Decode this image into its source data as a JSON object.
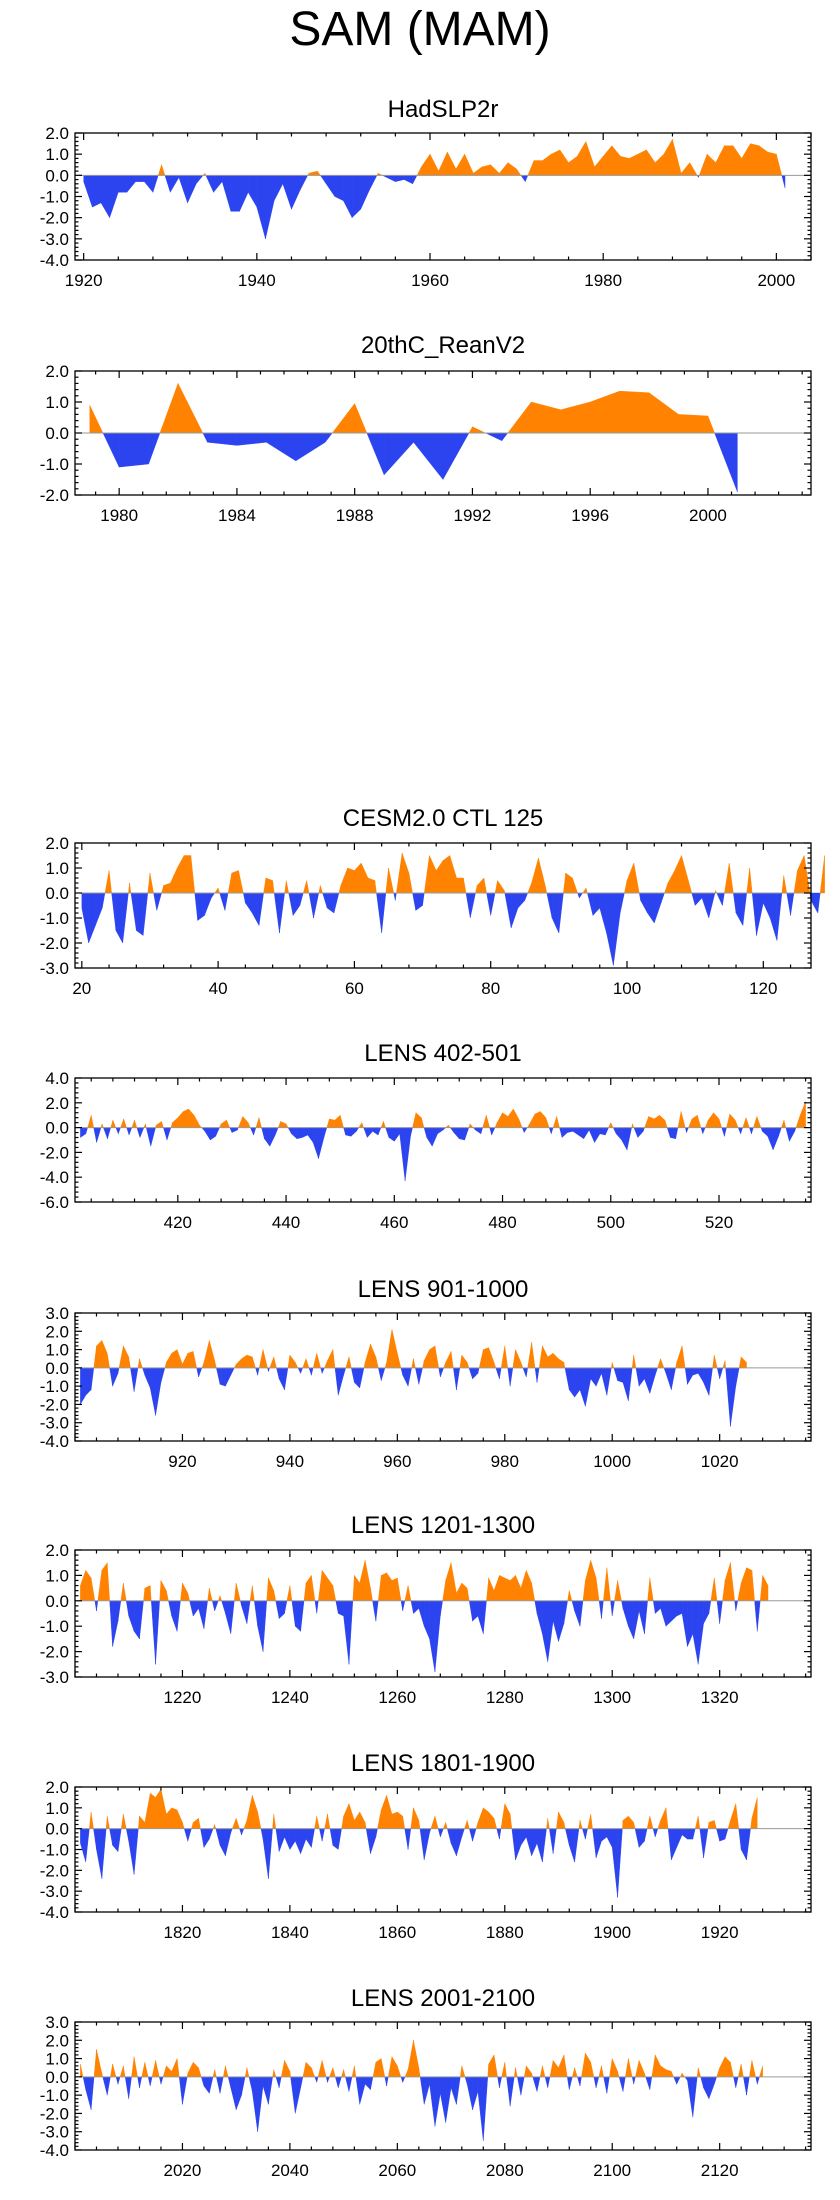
{
  "title": "SAM (MAM)",
  "colors": {
    "positive": "#ff8200",
    "negative": "#2b44f0",
    "frame": "#000000",
    "zero_line": "#9a9a9a"
  },
  "chart_data": [
    {
      "type": "area",
      "title": "HadSLP2r",
      "x_range": [
        1919,
        2004
      ],
      "ylim": [
        -4.0,
        2.0
      ],
      "yticks": [
        -4.0,
        -3.0,
        -2.0,
        -1.0,
        0.0,
        1.0,
        2.0
      ],
      "ytick_labels": [
        "-4.0",
        "-3.0",
        "-2.0",
        "-1.0",
        "0.0",
        "1.0",
        "2.0"
      ],
      "xticks": [
        1920,
        1940,
        1960,
        1980,
        2000
      ],
      "xtick_labels": [
        "1920",
        "1940",
        "1960",
        "1980",
        "2000"
      ],
      "x_start": 1920,
      "values": [
        -0.3,
        -1.5,
        -1.3,
        -2.0,
        -0.8,
        -0.8,
        -0.3,
        -0.3,
        -0.8,
        0.5,
        -0.8,
        -0.1,
        -1.3,
        -0.4,
        0.1,
        -0.8,
        -0.3,
        -1.7,
        -1.7,
        -0.8,
        -1.5,
        -3.0,
        -1.2,
        -0.4,
        -1.6,
        -0.7,
        0.1,
        0.2,
        -0.4,
        -1.0,
        -1.2,
        -2.0,
        -1.6,
        -0.7,
        0.1,
        -0.1,
        -0.3,
        -0.2,
        -0.4,
        0.4,
        1.0,
        0.2,
        1.1,
        0.3,
        1.0,
        0.1,
        0.4,
        0.5,
        0.1,
        0.6,
        0.3,
        -0.3,
        0.7,
        0.7,
        1.0,
        1.2,
        0.6,
        0.9,
        1.6,
        0.4,
        0.9,
        1.4,
        0.9,
        0.8,
        1.0,
        1.2,
        0.6,
        1.0,
        1.7,
        0.1,
        0.6,
        -0.1,
        1.0,
        0.6,
        1.4,
        1.4,
        0.8,
        1.5,
        1.4,
        1.1,
        1.0,
        -0.6
      ]
    },
    {
      "type": "area",
      "title": "20thC_ReanV2",
      "x_range": [
        1978.5,
        2003.5
      ],
      "ylim": [
        -2.0,
        2.0
      ],
      "yticks": [
        -2.0,
        -1.0,
        0.0,
        1.0,
        2.0
      ],
      "ytick_labels": [
        "-2.0",
        "-1.0",
        "0.0",
        "1.0",
        "2.0"
      ],
      "xticks": [
        1980,
        1984,
        1988,
        1992,
        1996,
        2000
      ],
      "xtick_labels": [
        "1980",
        "1984",
        "1988",
        "1992",
        "1996",
        "2000"
      ],
      "x_start": 1979,
      "values": [
        0.9,
        -1.1,
        -1.0,
        1.6,
        -0.3,
        -0.4,
        -0.3,
        -0.9,
        -0.3,
        0.95,
        -1.35,
        -0.3,
        -1.5,
        0.2,
        -0.25,
        1.0,
        0.75,
        1.0,
        1.35,
        1.3,
        0.6,
        0.55,
        -1.9
      ]
    },
    {
      "type": "area",
      "title": "CESM2.0 CTL 125",
      "x_range": [
        19,
        127
      ],
      "ylim": [
        -3.0,
        2.0
      ],
      "yticks": [
        -3.0,
        -2.0,
        -1.0,
        0.0,
        1.0,
        2.0
      ],
      "ytick_labels": [
        "-3.0",
        "-2.0",
        "-1.0",
        "0.0",
        "1.0",
        "2.0"
      ],
      "xticks": [
        20,
        40,
        60,
        80,
        100,
        120
      ],
      "xtick_labels": [
        "20",
        "40",
        "60",
        "80",
        "100",
        "120"
      ],
      "x_start": 20,
      "values": [
        -0.6,
        -2.0,
        -1.3,
        -0.6,
        0.9,
        -1.5,
        -2.0,
        0.4,
        -1.5,
        -1.7,
        0.8,
        -0.7,
        0.3,
        0.4,
        1.0,
        1.5,
        1.5,
        -1.1,
        -0.9,
        -0.2,
        0.2,
        -0.7,
        0.8,
        0.9,
        -0.4,
        -0.8,
        -1.3,
        0.6,
        0.5,
        -1.6,
        0.5,
        -0.9,
        -0.5,
        0.5,
        -1.0,
        0.3,
        -0.6,
        -0.8,
        0.3,
        1.0,
        0.9,
        1.2,
        0.6,
        0.5,
        -1.6,
        1.0,
        -0.3,
        1.6,
        0.8,
        -0.7,
        -0.5,
        1.5,
        0.9,
        1.3,
        1.5,
        0.6,
        0.6,
        -1.0,
        0.3,
        0.6,
        -0.9,
        0.5,
        0.1,
        -1.4,
        -0.6,
        -0.3,
        0.4,
        1.4,
        0.3,
        -1.0,
        -1.6,
        0.8,
        0.6,
        -0.2,
        0.2,
        -0.9,
        -0.6,
        -1.6,
        -2.9,
        -0.8,
        0.5,
        1.2,
        -0.3,
        -0.8,
        -1.2,
        -0.4,
        0.4,
        0.9,
        1.5,
        0.5,
        -0.5,
        -0.2,
        -1.0,
        0.1,
        -0.5,
        1.2,
        -0.8,
        -1.3,
        1.0,
        -1.7,
        -0.4,
        -1.0,
        -1.9,
        0.7,
        -0.9,
        0.9,
        1.5,
        -0.3,
        -0.8,
        1.5
      ]
    },
    {
      "type": "area",
      "title": "LENS 402-501",
      "x_range": [
        401,
        537
      ],
      "ylim": [
        -6.0,
        4.0
      ],
      "yticks": [
        -6.0,
        -4.0,
        -2.0,
        0.0,
        2.0,
        4.0
      ],
      "ytick_labels": [
        "-6.0",
        "-4.0",
        "-2.0",
        "0.0",
        "2.0",
        "4.0"
      ],
      "xticks": [
        420,
        440,
        460,
        480,
        500,
        520
      ],
      "xtick_labels": [
        "420",
        "440",
        "460",
        "480",
        "500",
        "520"
      ],
      "x_start": 402,
      "values": [
        -0.8,
        -0.5,
        1.0,
        -1.2,
        0.3,
        -0.9,
        0.6,
        -0.5,
        0.7,
        -0.6,
        0.6,
        -0.8,
        0.3,
        -1.5,
        0.2,
        0.5,
        -1.0,
        0.4,
        0.8,
        1.3,
        1.5,
        1.0,
        0.2,
        -0.3,
        -1.0,
        -0.7,
        0.3,
        0.6,
        -0.4,
        -0.2,
        0.9,
        0.4,
        -0.6,
        0.8,
        -0.9,
        -1.5,
        -0.6,
        0.5,
        0.3,
        -0.5,
        -0.9,
        -0.8,
        -0.6,
        -1.2,
        -2.5,
        -0.8,
        0.7,
        0.6,
        1.0,
        -0.6,
        -0.7,
        -0.3,
        0.4,
        -0.8,
        -0.3,
        -0.6,
        0.5,
        -0.8,
        -1.1,
        -0.5,
        -4.3,
        -0.7,
        1.2,
        0.8,
        -0.8,
        -1.5,
        -0.5,
        -0.2,
        0.2,
        -0.4,
        -0.9,
        -1.0,
        0.3,
        -0.2,
        -0.5,
        1.0,
        -0.6,
        0.4,
        1.2,
        0.9,
        1.5,
        0.7,
        -0.4,
        0.3,
        1.1,
        1.3,
        0.8,
        -0.5,
        0.9,
        -0.8,
        -0.4,
        -0.3,
        -0.6,
        -0.9,
        -0.2,
        -1.2,
        -0.5,
        -0.6,
        0.4,
        -0.5,
        -1.0,
        -1.8,
        0.3,
        -0.8,
        -0.3,
        0.9,
        0.7,
        1.0,
        0.6,
        -0.8,
        -0.9,
        1.3,
        -0.4,
        0.7,
        1.0,
        -0.5,
        0.6,
        1.2,
        0.7,
        -0.7,
        1.1,
        0.6,
        -0.5,
        0.8,
        -0.5,
        0.9,
        -0.3,
        -0.7,
        -1.8,
        -0.7,
        0.6,
        -1.1,
        -0.3,
        1.0,
        2.1
      ]
    },
    {
      "type": "area",
      "title": "LENS 901-1000",
      "x_range": [
        900,
        1037
      ],
      "ylim": [
        -4.0,
        3.0
      ],
      "yticks": [
        -4.0,
        -3.0,
        -2.0,
        -1.0,
        0.0,
        1.0,
        2.0,
        3.0
      ],
      "ytick_labels": [
        "-4.0",
        "-3.0",
        "-2.0",
        "-1.0",
        "0.0",
        "1.0",
        "2.0",
        "3.0"
      ],
      "xticks": [
        920,
        940,
        960,
        980,
        1000,
        1020
      ],
      "xtick_labels": [
        "920",
        "940",
        "960",
        "980",
        "1000",
        "1020"
      ],
      "x_start": 901,
      "values": [
        -2.0,
        -1.5,
        -1.2,
        1.2,
        1.5,
        0.8,
        -1.0,
        -0.3,
        1.2,
        0.6,
        -1.3,
        0.5,
        -0.4,
        -1.1,
        -2.6,
        -0.8,
        0.3,
        0.8,
        1.0,
        0.2,
        0.8,
        0.9,
        -0.5,
        0.3,
        1.5,
        0.4,
        -0.9,
        -1.0,
        -0.4,
        0.2,
        0.5,
        0.7,
        0.6,
        -0.4,
        1.0,
        -0.2,
        0.6,
        -0.6,
        -1.2,
        0.7,
        0.3,
        -0.3,
        0.5,
        -0.4,
        0.8,
        -0.3,
        0.4,
        1.0,
        -1.5,
        -0.4,
        0.6,
        -0.8,
        -1.1,
        0.3,
        1.3,
        0.6,
        -0.7,
        0.3,
        2.1,
        0.8,
        -0.4,
        -1.0,
        0.5,
        -0.9,
        0.4,
        1.0,
        1.2,
        -0.5,
        0.3,
        0.9,
        -1.2,
        0.7,
        0.3,
        -0.6,
        -0.3,
        1.0,
        1.1,
        0.3,
        -0.6,
        1.2,
        -1.0,
        1.0,
        0.3,
        -0.5,
        1.4,
        -0.8,
        1.2,
        0.6,
        0.8,
        0.5,
        0.3,
        -1.2,
        -1.6,
        -1.2,
        -2.1,
        -0.6,
        -1.0,
        -0.3,
        -1.5,
        0.3,
        -0.7,
        -0.8,
        -1.8,
        0.7,
        -1.0,
        -0.6,
        -1.4,
        -0.4,
        0.5,
        -0.3,
        -1.2,
        0.3,
        1.2,
        -0.9,
        -0.4,
        -0.3,
        -0.8,
        -1.5,
        0.7,
        -0.6,
        0.4,
        -3.2,
        -1.0,
        0.6,
        0.3
      ]
    },
    {
      "type": "area",
      "title": "LENS 1201-1300",
      "x_range": [
        1200,
        1337
      ],
      "ylim": [
        -3.0,
        2.0
      ],
      "yticks": [
        -3.0,
        -2.0,
        -1.0,
        0.0,
        1.0,
        2.0
      ],
      "ytick_labels": [
        "-3.0",
        "-2.0",
        "-1.0",
        "0.0",
        "1.0",
        "2.0"
      ],
      "xticks": [
        1220,
        1240,
        1260,
        1280,
        1300,
        1320
      ],
      "xtick_labels": [
        "1220",
        "1240",
        "1260",
        "1280",
        "1300",
        "1320"
      ],
      "x_start": 1201,
      "values": [
        0.6,
        1.2,
        0.9,
        -0.4,
        1.2,
        1.5,
        -1.8,
        -0.8,
        0.7,
        -0.6,
        -1.2,
        -1.5,
        0.5,
        0.6,
        -2.5,
        0.8,
        0.4,
        -0.6,
        -1.2,
        0.7,
        0.3,
        -0.6,
        -0.3,
        -1.1,
        0.5,
        -0.4,
        0.2,
        -0.5,
        -1.3,
        0.7,
        -0.2,
        -0.9,
        0.6,
        -1.0,
        -2.0,
        0.9,
        0.4,
        -0.7,
        -0.5,
        0.6,
        -1.0,
        -1.2,
        0.7,
        1.0,
        -0.5,
        1.2,
        0.9,
        0.6,
        -0.5,
        -0.6,
        -2.5,
        1.0,
        0.7,
        1.6,
        0.5,
        -0.8,
        1.0,
        1.1,
        0.8,
        0.9,
        -0.4,
        0.6,
        -0.5,
        -0.3,
        -1.0,
        -1.5,
        -2.8,
        -0.6,
        0.8,
        1.5,
        0.3,
        0.7,
        0.5,
        -0.8,
        -0.6,
        -1.3,
        0.9,
        0.4,
        1.0,
        0.9,
        0.8,
        1.0,
        0.5,
        1.2,
        0.7,
        -0.5,
        -1.3,
        -2.4,
        -0.8,
        -1.6,
        -0.9,
        0.4,
        -0.4,
        -1.0,
        0.8,
        1.6,
        0.9,
        -0.7,
        1.3,
        -0.6,
        0.8,
        -0.3,
        -1.0,
        -1.5,
        -0.4,
        -1.3,
        0.9,
        -0.5,
        -0.3,
        -1.0,
        -0.8,
        -0.6,
        -0.5,
        -1.8,
        -1.3,
        -2.5,
        -0.9,
        -0.5,
        0.9,
        -0.9,
        0.8,
        1.5,
        -0.4,
        0.7,
        1.3,
        1.2,
        -1.2,
        1.0,
        0.6
      ]
    },
    {
      "type": "area",
      "title": "LENS 1801-1900",
      "x_range": [
        1800,
        1937
      ],
      "ylim": [
        -4.0,
        2.0
      ],
      "yticks": [
        -4.0,
        -3.0,
        -2.0,
        -1.0,
        0.0,
        1.0,
        2.0
      ],
      "ytick_labels": [
        "-4.0",
        "-3.0",
        "-2.0",
        "-1.0",
        "0.0",
        "1.0",
        "2.0"
      ],
      "xticks": [
        1820,
        1840,
        1860,
        1880,
        1900,
        1920
      ],
      "xtick_labels": [
        "1820",
        "1840",
        "1860",
        "1880",
        "1900",
        "1920"
      ],
      "x_start": 1801,
      "values": [
        -0.7,
        -1.6,
        0.8,
        -1.0,
        -2.4,
        0.6,
        -0.8,
        -1.1,
        0.7,
        -0.6,
        -2.2,
        0.6,
        0.3,
        1.7,
        1.5,
        1.9,
        0.7,
        1.0,
        0.9,
        0.3,
        -0.6,
        0.3,
        0.5,
        -0.9,
        -0.5,
        0.2,
        -0.8,
        -1.3,
        -0.2,
        0.5,
        -0.3,
        0.4,
        1.6,
        0.8,
        -0.5,
        -2.4,
        0.7,
        -1.1,
        -0.4,
        -1.0,
        -0.6,
        -1.2,
        -0.5,
        -0.9,
        0.6,
        -0.6,
        0.7,
        -0.8,
        -1.0,
        0.6,
        1.2,
        0.4,
        0.8,
        0.3,
        -1.2,
        -0.4,
        0.9,
        1.6,
        0.7,
        0.8,
        0.6,
        -1.0,
        1.0,
        0.4,
        -1.5,
        -0.2,
        0.6,
        -0.4,
        0.3,
        -0.7,
        -1.3,
        -0.4,
        0.4,
        -0.6,
        0.3,
        1.0,
        0.8,
        0.5,
        -0.5,
        1.2,
        0.7,
        -1.5,
        -0.8,
        -0.4,
        -1.3,
        -0.7,
        -1.6,
        0.5,
        -1.2,
        0.8,
        0.3,
        -0.8,
        -1.6,
        0.4,
        -0.5,
        0.7,
        -1.4,
        -0.6,
        -0.4,
        -0.9,
        -3.3,
        0.4,
        0.6,
        0.3,
        -0.9,
        -0.6,
        0.6,
        -0.4,
        0.4,
        1.0,
        -1.5,
        -0.9,
        -0.3,
        -0.5,
        -0.5,
        0.6,
        -1.4,
        0.3,
        0.4,
        -0.6,
        -0.5,
        0.4,
        1.2,
        -1.0,
        -1.5,
        0.5,
        1.5
      ]
    },
    {
      "type": "area",
      "title": "LENS 2001-2100",
      "x_range": [
        2000,
        2137
      ],
      "ylim": [
        -4.0,
        3.0
      ],
      "yticks": [
        -4.0,
        -3.0,
        -2.0,
        -1.0,
        0.0,
        1.0,
        2.0,
        3.0
      ],
      "ytick_labels": [
        "-4.0",
        "-3.0",
        "-2.0",
        "-1.0",
        "0.0",
        "1.0",
        "2.0",
        "3.0"
      ],
      "xticks": [
        2020,
        2040,
        2060,
        2080,
        2100,
        2120
      ],
      "xtick_labels": [
        "2020",
        "2040",
        "2060",
        "2080",
        "2100",
        "2120"
      ],
      "x_start": 2001,
      "values": [
        0.7,
        -0.7,
        -1.8,
        1.5,
        0.2,
        -1.0,
        0.7,
        -0.4,
        0.6,
        -1.2,
        1.1,
        -0.6,
        0.8,
        -0.5,
        0.9,
        -0.4,
        0.6,
        0.3,
        1.0,
        -1.5,
        0.2,
        0.8,
        0.5,
        -0.5,
        -0.9,
        0.4,
        -0.9,
        0.6,
        -0.6,
        -1.8,
        -1.0,
        0.5,
        -0.8,
        -3.0,
        -0.5,
        -1.5,
        0.4,
        -0.6,
        0.9,
        0.3,
        -2.0,
        -0.6,
        0.8,
        0.5,
        -0.3,
        0.9,
        -0.3,
        0.5,
        -0.6,
        0.4,
        -0.8,
        0.6,
        -1.5,
        -0.4,
        -0.7,
        0.8,
        1.0,
        -0.5,
        1.1,
        0.6,
        -0.3,
        0.4,
        2.0,
        0.5,
        -1.5,
        -0.4,
        -2.7,
        -0.9,
        -2.5,
        -0.6,
        -1.5,
        0.6,
        -0.4,
        -1.8,
        -0.8,
        -3.5,
        0.7,
        1.2,
        -0.6,
        0.8,
        -1.6,
        0.5,
        -1.0,
        0.6,
        0.2,
        -0.8,
        0.6,
        -0.6,
        0.9,
        0.5,
        1.2,
        -0.7,
        0.5,
        -0.5,
        1.3,
        0.8,
        -0.6,
        0.6,
        -0.9,
        1.0,
        0.3,
        -0.8,
        1.0,
        -0.4,
        0.9,
        0.2,
        -0.7,
        1.2,
        0.6,
        0.4,
        0.3,
        -0.4,
        0.2,
        -0.2,
        -2.2,
        0.5,
        -0.6,
        -1.2,
        -0.4,
        0.5,
        1.1,
        0.8,
        -0.6,
        0.7,
        -1.0,
        0.9,
        -0.4,
        0.6
      ]
    }
  ]
}
